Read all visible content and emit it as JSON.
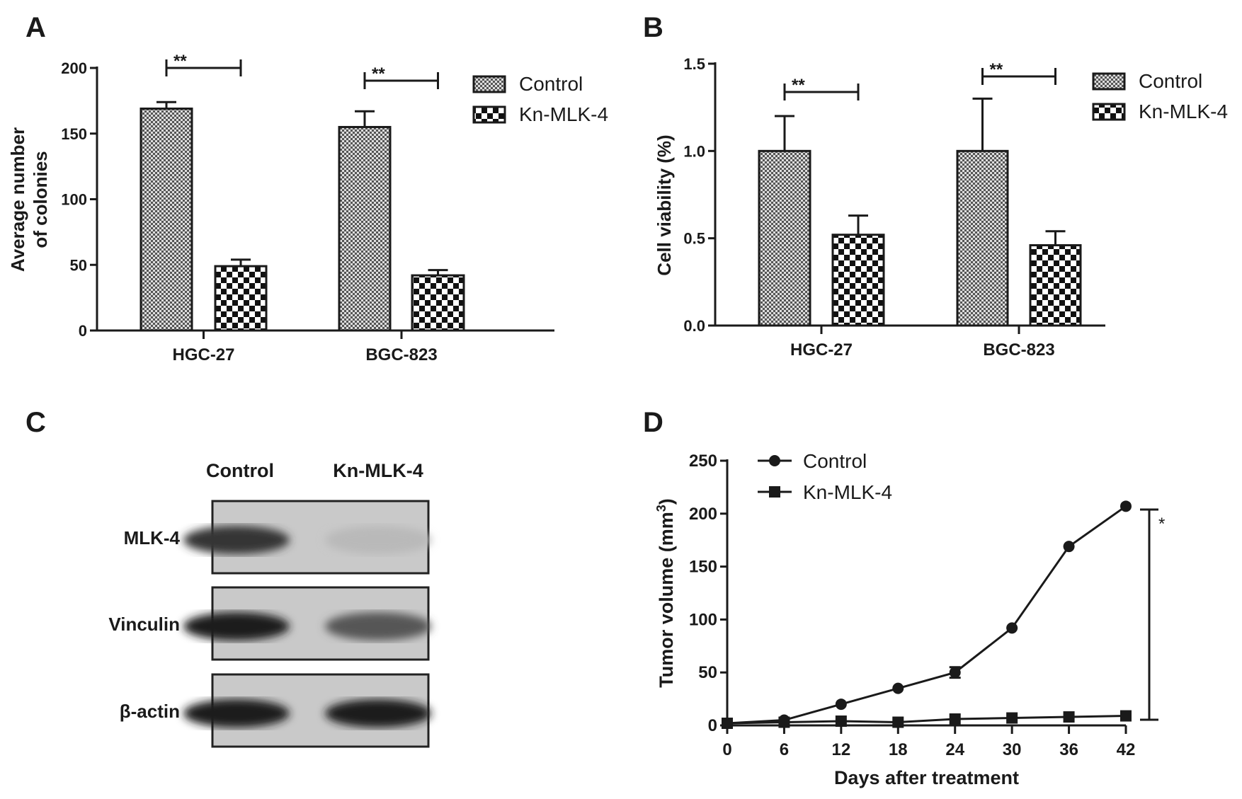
{
  "panel_letters": [
    "A",
    "B",
    "C",
    "D"
  ],
  "chart_data": [
    {
      "panel": "A",
      "type": "bar",
      "categories": [
        "HGC-27",
        "BGC-823"
      ],
      "series": [
        {
          "name": "Control",
          "values": [
            169,
            155
          ],
          "errors": [
            5,
            12
          ]
        },
        {
          "name": "Kn-MLK-4",
          "values": [
            49,
            42
          ],
          "errors": [
            5,
            4
          ]
        }
      ],
      "ylabel_lines": [
        "Average number",
        "of colonies"
      ],
      "ylim": [
        0,
        200
      ],
      "yticks": [
        "0",
        "50",
        "100",
        "150",
        "200"
      ],
      "ytick_values": [
        0,
        50,
        100,
        150,
        200
      ],
      "significance": [
        "**",
        "**"
      ],
      "legend_position": "top-right"
    },
    {
      "panel": "B",
      "type": "bar",
      "categories": [
        "HGC-27",
        "BGC-823"
      ],
      "series": [
        {
          "name": "Control",
          "values": [
            1.0,
            1.0
          ],
          "errors": [
            0.2,
            0.3
          ]
        },
        {
          "name": "Kn-MLK-4",
          "values": [
            0.52,
            0.46
          ],
          "errors": [
            0.11,
            0.08
          ]
        }
      ],
      "ylabel": "Cell viability (%)",
      "ylim": [
        0,
        1.5
      ],
      "yticks": [
        "0.0",
        "0.5",
        "1.0",
        "1.5"
      ],
      "ytick_values": [
        0,
        0.5,
        1.0,
        1.5
      ],
      "significance": [
        "**",
        "**"
      ],
      "legend_position": "top-right"
    },
    {
      "panel": "D",
      "type": "line",
      "x": [
        0,
        6,
        12,
        18,
        24,
        30,
        36,
        42
      ],
      "series": [
        {
          "name": "Control",
          "marker": "circle",
          "values": [
            2,
            5,
            20,
            35,
            50,
            92,
            169,
            207
          ],
          "errors": [
            0,
            0,
            0,
            0,
            5,
            0,
            0,
            0
          ]
        },
        {
          "name": "Kn-MLK-4",
          "marker": "square",
          "values": [
            2,
            3,
            4,
            3,
            6,
            7,
            8,
            9
          ]
        }
      ],
      "xlabel": "Days after treatment",
      "ylabel": "Tumor volume  (mm",
      "ylabel_sup": "3",
      "ylabel_close": ")",
      "xlim": [
        0,
        42
      ],
      "ylim": [
        0,
        250
      ],
      "xticks": [
        "0",
        "6",
        "12",
        "18",
        "24",
        "30",
        "36",
        "42"
      ],
      "yticks": [
        "0",
        "50",
        "100",
        "150",
        "200",
        "250"
      ],
      "ytick_values": [
        0,
        50,
        100,
        150,
        200,
        250
      ],
      "significance": "*",
      "legend_position": "top-left"
    }
  ],
  "western_blot": {
    "columns": [
      "Control",
      "Kn-MLK-4"
    ],
    "rows": [
      {
        "label": "MLK-4",
        "intensity": [
          0.85,
          0.25
        ]
      },
      {
        "label": "Vinculin",
        "intensity": [
          0.95,
          0.7
        ]
      },
      {
        "label": "β-actin",
        "intensity": [
          0.95,
          0.95
        ]
      }
    ]
  }
}
